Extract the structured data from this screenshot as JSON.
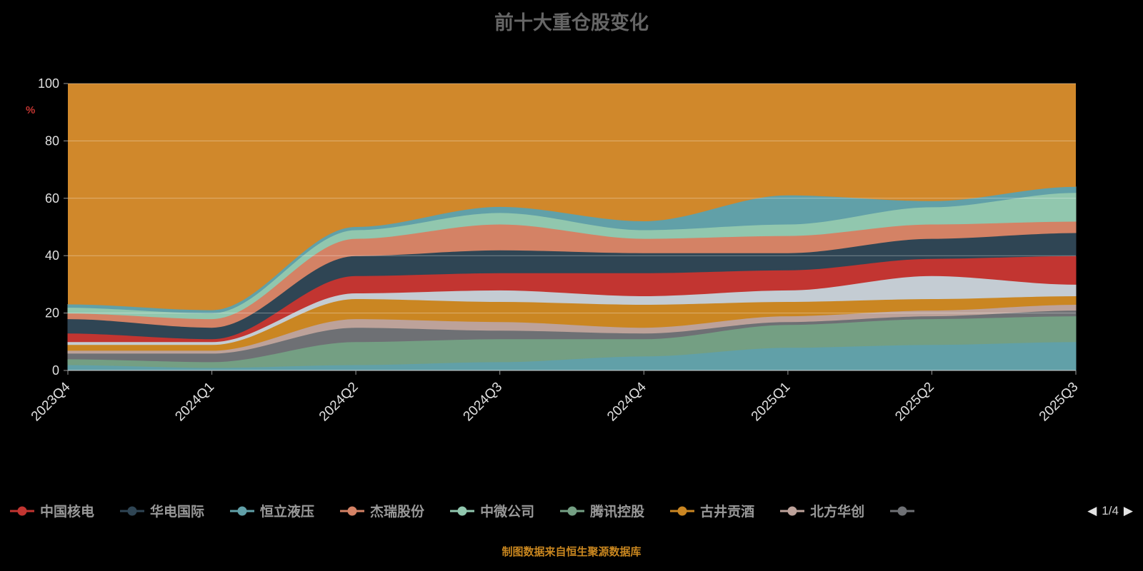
{
  "title": "前十大重仓股变化",
  "y_unit": "%",
  "caption": "制图数据来自恒生聚源数据库",
  "pagination": {
    "prev": "◀",
    "label": "1/4",
    "next": "▶"
  },
  "colors": {
    "background": "#000000",
    "title": "#666666",
    "axis_label": "#e0e0e0",
    "grid_line": "rgba(255,255,255,0.35)",
    "axis_line": "#cfcfcf",
    "unit_label": "#c23531",
    "caption": "#c8861f",
    "legend_text": "#999999",
    "remainder_fill": "#d0882b"
  },
  "legend": {
    "items": [
      {
        "label": "中国核电",
        "color": "#c23531"
      },
      {
        "label": "华电国际",
        "color": "#2f4554"
      },
      {
        "label": "恒立液压",
        "color": "#61a0a8"
      },
      {
        "label": "杰瑞股份",
        "color": "#d48265"
      },
      {
        "label": "中微公司",
        "color": "#91c7ae"
      },
      {
        "label": "腾讯控股",
        "color": "#749f83"
      },
      {
        "label": "古井贡酒",
        "color": "#ca8622"
      },
      {
        "label": "北方华创",
        "color": "#bda29a"
      },
      {
        "label": "",
        "color": "#6e7074"
      }
    ]
  },
  "chart_data": {
    "type": "area",
    "stacked": true,
    "title": "前十大重仓股变化",
    "ylabel": "%",
    "x": [
      "2023Q4",
      "2024Q1",
      "2024Q2",
      "2024Q3",
      "2024Q4",
      "2025Q1",
      "2025Q2",
      "2025Q3"
    ],
    "ylim": [
      0,
      100
    ],
    "yticks": [
      0,
      20,
      40,
      60,
      80,
      100
    ],
    "grid": true,
    "legend_position": "bottom",
    "series": [
      {
        "name": "恒立液压",
        "color": "#61a0a8",
        "values": [
          2,
          1,
          2,
          3,
          5,
          8,
          9,
          10
        ]
      },
      {
        "name": "腾讯控股",
        "color": "#749f83",
        "values": [
          2,
          2,
          8,
          8,
          6,
          8,
          9,
          9
        ]
      },
      {
        "name": "",
        "color": "#6e7074",
        "values": [
          2,
          3,
          5,
          3,
          2,
          1,
          1,
          2
        ]
      },
      {
        "name": "北方华创",
        "color": "#bda29a",
        "values": [
          1,
          1,
          3,
          3,
          2,
          2,
          2,
          2
        ]
      },
      {
        "name": "古井贡酒",
        "color": "#ca8622",
        "values": [
          2,
          2,
          7,
          7,
          8,
          5,
          4,
          3
        ]
      },
      {
        "name": "",
        "color": "#c4ccd3",
        "values": [
          1,
          1,
          2,
          4,
          3,
          4,
          8,
          4
        ]
      },
      {
        "name": "中国核电",
        "color": "#c23531",
        "values": [
          3,
          1,
          6,
          6,
          8,
          7,
          6,
          10
        ]
      },
      {
        "name": "华电国际",
        "color": "#2f4554",
        "values": [
          5,
          4,
          7,
          8,
          7,
          6,
          7,
          8
        ]
      },
      {
        "name": "杰瑞股份",
        "color": "#d48265",
        "values": [
          2,
          3,
          6,
          9,
          5,
          6,
          5,
          4
        ]
      },
      {
        "name": "中微公司",
        "color": "#91c7ae",
        "values": [
          2,
          2,
          3,
          4,
          3,
          4,
          6,
          10
        ]
      },
      {
        "name": "",
        "color": "#61a0a8",
        "values": [
          1,
          1,
          1,
          2,
          3,
          10,
          2,
          2
        ]
      }
    ],
    "remainder": {
      "color": "#d0882b",
      "fills_to": 100
    }
  }
}
